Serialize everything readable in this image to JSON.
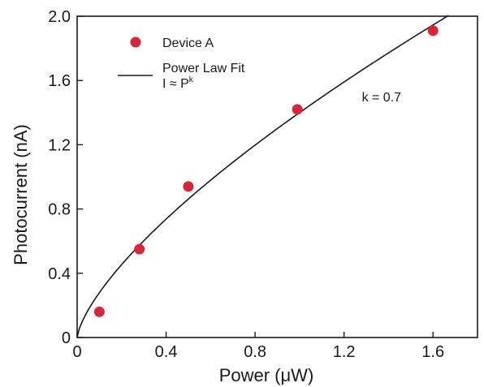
{
  "chart_data": {
    "type": "scatter",
    "xlabel": "Power (μW)",
    "ylabel": "Photocurrent (nA)",
    "xlim": [
      0,
      1.8
    ],
    "ylim": [
      0,
      2.0
    ],
    "x_ticks": [
      0,
      0.4,
      0.8,
      1.2,
      1.6
    ],
    "x_tick_labels": [
      "0",
      "0.4",
      "0.8",
      "1.2",
      "1.6"
    ],
    "y_ticks": [
      0,
      0.4,
      0.8,
      1.2,
      1.6,
      2.0
    ],
    "y_tick_labels": [
      "0",
      "0.4",
      "0.8",
      "1.2",
      "1.6",
      "2.0"
    ],
    "grid": false,
    "legend_position": "top-left",
    "series": [
      {
        "name": "Device A",
        "kind": "markers",
        "color": "#d9243a",
        "x": [
          0.1,
          0.28,
          0.5,
          0.99,
          1.6
        ],
        "y": [
          0.16,
          0.55,
          0.94,
          1.42,
          1.91
        ]
      },
      {
        "name": "Power Law Fit",
        "name_line2": "I ≈ P",
        "name_line2_sup": "k",
        "kind": "line",
        "color": "#1a1a1a",
        "function": "power_law",
        "coefficient": 1.4,
        "exponent": 0.7,
        "x_range": [
          0,
          1.67
        ]
      }
    ],
    "annotations": [
      {
        "text": "k = 0.7",
        "x": 1.28,
        "y": 1.47
      }
    ]
  }
}
